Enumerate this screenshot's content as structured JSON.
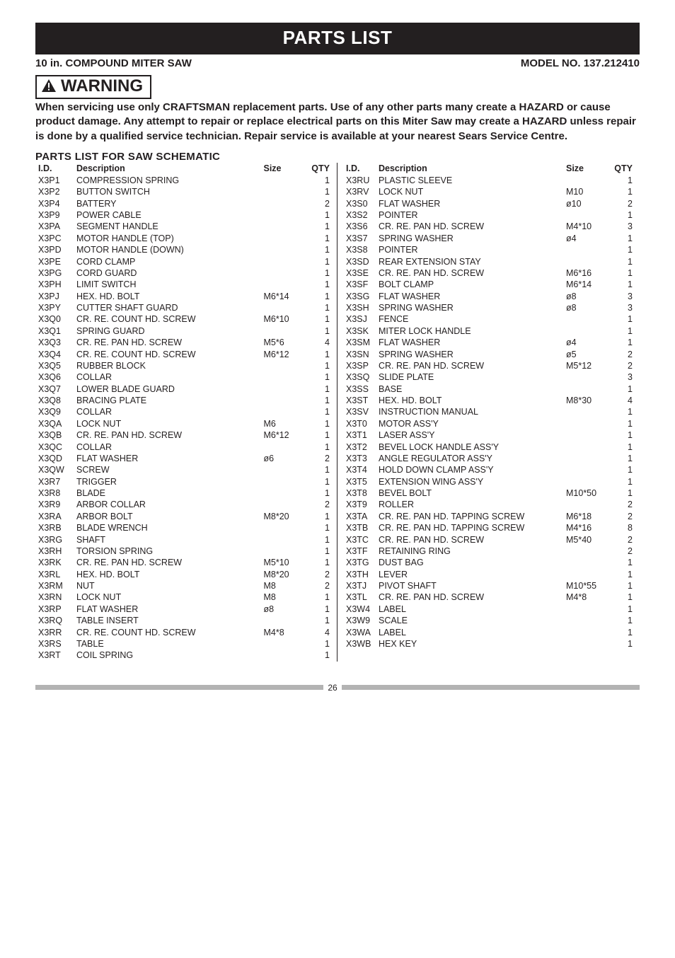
{
  "title": "PARTS LIST",
  "subtitle_left": "10 in. COMPOUND MITER SAW",
  "subtitle_right": "MODEL NO. 137.212410",
  "warning_label": "WARNING",
  "warning_text": "When servicing use only CRAFTSMAN replacement parts. Use of any other parts many create a HAZARD or cause product damage. Any attempt to repair or replace electrical parts on this Miter Saw may create a HAZARD unless repair is done by a qualified service technician. Repair service is available at your nearest Sears Service Centre.",
  "section_title": "PARTS LIST FOR SAW SCHEMATIC",
  "headers": {
    "id": "I.D.",
    "desc": "Description",
    "size": "Size",
    "qty": "QTY"
  },
  "left": [
    {
      "id": "X3P1",
      "desc": "COMPRESSION SPRING",
      "size": "",
      "qty": "1"
    },
    {
      "id": "X3P2",
      "desc": "BUTTON SWITCH",
      "size": "",
      "qty": "1"
    },
    {
      "id": "X3P4",
      "desc": "BATTERY",
      "size": "",
      "qty": "2"
    },
    {
      "id": "X3P9",
      "desc": "POWER CABLE",
      "size": "",
      "qty": "1"
    },
    {
      "id": "X3PA",
      "desc": "SEGMENT HANDLE",
      "size": "",
      "qty": "1"
    },
    {
      "id": "X3PC",
      "desc": "MOTOR HANDLE (TOP)",
      "size": "",
      "qty": "1"
    },
    {
      "id": "X3PD",
      "desc": "MOTOR HANDLE (DOWN)",
      "size": "",
      "qty": "1"
    },
    {
      "id": "X3PE",
      "desc": "CORD CLAMP",
      "size": "",
      "qty": "1"
    },
    {
      "id": "X3PG",
      "desc": "CORD GUARD",
      "size": "",
      "qty": "1"
    },
    {
      "id": "X3PH",
      "desc": "LIMIT SWITCH",
      "size": "",
      "qty": "1"
    },
    {
      "id": "X3PJ",
      "desc": "HEX. HD. BOLT",
      "size": "M6*14",
      "qty": "1"
    },
    {
      "id": "X3PY",
      "desc": "CUTTER SHAFT GUARD",
      "size": "",
      "qty": "1"
    },
    {
      "id": "X3Q0",
      "desc": "CR. RE. COUNT HD. SCREW",
      "size": "M6*10",
      "qty": "1"
    },
    {
      "id": "X3Q1",
      "desc": "SPRING GUARD",
      "size": "",
      "qty": "1"
    },
    {
      "id": "X3Q3",
      "desc": "CR. RE. PAN HD. SCREW",
      "size": "M5*6",
      "qty": "4"
    },
    {
      "id": "X3Q4",
      "desc": "CR. RE. COUNT HD. SCREW",
      "size": "M6*12",
      "qty": "1"
    },
    {
      "id": "X3Q5",
      "desc": "RUBBER BLOCK",
      "size": "",
      "qty": "1"
    },
    {
      "id": "X3Q6",
      "desc": "COLLAR",
      "size": "",
      "qty": "1"
    },
    {
      "id": "X3Q7",
      "desc": "LOWER BLADE GUARD",
      "size": "",
      "qty": "1"
    },
    {
      "id": "X3Q8",
      "desc": "BRACING PLATE",
      "size": "",
      "qty": "1"
    },
    {
      "id": "X3Q9",
      "desc": "COLLAR",
      "size": "",
      "qty": "1"
    },
    {
      "id": "X3QA",
      "desc": "LOCK NUT",
      "size": "M6",
      "qty": "1"
    },
    {
      "id": "X3QB",
      "desc": "CR. RE. PAN HD. SCREW",
      "size": "M6*12",
      "qty": "1"
    },
    {
      "id": "X3QC",
      "desc": "COLLAR",
      "size": "",
      "qty": "1"
    },
    {
      "id": "X3QD",
      "desc": "FLAT WASHER",
      "size": "ø6",
      "qty": "2"
    },
    {
      "id": "X3QW",
      "desc": "SCREW",
      "size": "",
      "qty": "1"
    },
    {
      "id": "X3R7",
      "desc": "TRIGGER",
      "size": "",
      "qty": "1"
    },
    {
      "id": "X3R8",
      "desc": "BLADE",
      "size": "",
      "qty": "1"
    },
    {
      "id": "X3R9",
      "desc": "ARBOR COLLAR",
      "size": "",
      "qty": "2"
    },
    {
      "id": "X3RA",
      "desc": "ARBOR BOLT",
      "size": "M8*20",
      "qty": "1"
    },
    {
      "id": "X3RB",
      "desc": "BLADE WRENCH",
      "size": "",
      "qty": "1"
    },
    {
      "id": "X3RG",
      "desc": "SHAFT",
      "size": "",
      "qty": "1"
    },
    {
      "id": "X3RH",
      "desc": "TORSION SPRING",
      "size": "",
      "qty": "1"
    },
    {
      "id": "X3RK",
      "desc": "CR. RE. PAN HD. SCREW",
      "size": "M5*10",
      "qty": "1"
    },
    {
      "id": "X3RL",
      "desc": "HEX. HD. BOLT",
      "size": "M8*20",
      "qty": "2"
    },
    {
      "id": "X3RM",
      "desc": "NUT",
      "size": "M8",
      "qty": "2"
    },
    {
      "id": "X3RN",
      "desc": "LOCK NUT",
      "size": "M8",
      "qty": "1"
    },
    {
      "id": "X3RP",
      "desc": "FLAT WASHER",
      "size": "ø8",
      "qty": "1"
    },
    {
      "id": "X3RQ",
      "desc": "TABLE INSERT",
      "size": "",
      "qty": "1"
    },
    {
      "id": "X3RR",
      "desc": "CR. RE. COUNT HD. SCREW",
      "size": "M4*8",
      "qty": "4"
    },
    {
      "id": "X3RS",
      "desc": "TABLE",
      "size": "",
      "qty": "1"
    },
    {
      "id": "X3RT",
      "desc": "COIL SPRING",
      "size": "",
      "qty": "1"
    }
  ],
  "right": [
    {
      "id": "X3RU",
      "desc": "PLASTIC SLEEVE",
      "size": "",
      "qty": "1"
    },
    {
      "id": "X3RV",
      "desc": "LOCK NUT",
      "size": "M10",
      "qty": "1"
    },
    {
      "id": "X3S0",
      "desc": "FLAT WASHER",
      "size": "ø10",
      "qty": "2"
    },
    {
      "id": "X3S2",
      "desc": "POINTER",
      "size": "",
      "qty": "1"
    },
    {
      "id": "X3S6",
      "desc": "CR. RE. PAN HD. SCREW",
      "size": "M4*10",
      "qty": "3"
    },
    {
      "id": "X3S7",
      "desc": "SPRING WASHER",
      "size": "ø4",
      "qty": "1"
    },
    {
      "id": "X3S8",
      "desc": "POINTER",
      "size": "",
      "qty": "1"
    },
    {
      "id": "X3SD",
      "desc": "REAR EXTENSION STAY",
      "size": "",
      "qty": "1"
    },
    {
      "id": "X3SE",
      "desc": "CR. RE. PAN HD. SCREW",
      "size": "M6*16",
      "qty": "1"
    },
    {
      "id": "X3SF",
      "desc": "BOLT CLAMP",
      "size": "M6*14",
      "qty": "1"
    },
    {
      "id": "X3SG",
      "desc": "FLAT WASHER",
      "size": "ø8",
      "qty": "3"
    },
    {
      "id": "X3SH",
      "desc": "SPRING WASHER",
      "size": "ø8",
      "qty": "3"
    },
    {
      "id": "X3SJ",
      "desc": "FENCE",
      "size": "",
      "qty": "1"
    },
    {
      "id": "X3SK",
      "desc": "MITER LOCK HANDLE",
      "size": "",
      "qty": "1"
    },
    {
      "id": "X3SM",
      "desc": "FLAT WASHER",
      "size": "ø4",
      "qty": "1"
    },
    {
      "id": "X3SN",
      "desc": "SPRING WASHER",
      "size": "ø5",
      "qty": "2"
    },
    {
      "id": "X3SP",
      "desc": "CR. RE. PAN HD. SCREW",
      "size": "M5*12",
      "qty": "2"
    },
    {
      "id": "X3SQ",
      "desc": "SLIDE PLATE",
      "size": "",
      "qty": "3"
    },
    {
      "id": "X3SS",
      "desc": "BASE",
      "size": "",
      "qty": "1"
    },
    {
      "id": "X3ST",
      "desc": "HEX. HD. BOLT",
      "size": "M8*30",
      "qty": "4"
    },
    {
      "id": "X3SV",
      "desc": "INSTRUCTION MANUAL",
      "size": "",
      "qty": "1"
    },
    {
      "id": "X3T0",
      "desc": "MOTOR ASS'Y",
      "size": "",
      "qty": "1"
    },
    {
      "id": "X3T1",
      "desc": "LASER ASS'Y",
      "size": "",
      "qty": "1"
    },
    {
      "id": "X3T2",
      "desc": "BEVEL LOCK HANDLE ASS'Y",
      "size": "",
      "qty": "1"
    },
    {
      "id": "X3T3",
      "desc": "ANGLE REGULATOR ASS'Y",
      "size": "",
      "qty": "1"
    },
    {
      "id": "X3T4",
      "desc": "HOLD DOWN CLAMP ASS'Y",
      "size": "",
      "qty": "1"
    },
    {
      "id": "X3T5",
      "desc": "EXTENSION WING ASS'Y",
      "size": "",
      "qty": "1"
    },
    {
      "id": "X3T8",
      "desc": "BEVEL BOLT",
      "size": "M10*50",
      "qty": "1"
    },
    {
      "id": "X3T9",
      "desc": "ROLLER",
      "size": "",
      "qty": "2"
    },
    {
      "id": "X3TA",
      "desc": "CR. RE. PAN HD. TAPPING SCREW",
      "size": "M6*18",
      "qty": "2"
    },
    {
      "id": "X3TB",
      "desc": "CR. RE. PAN HD. TAPPING SCREW",
      "size": "M4*16",
      "qty": "8"
    },
    {
      "id": "X3TC",
      "desc": "CR. RE. PAN HD. SCREW",
      "size": "M5*40",
      "qty": "2"
    },
    {
      "id": "X3TF",
      "desc": "RETAINING RING",
      "size": "",
      "qty": "2"
    },
    {
      "id": "X3TG",
      "desc": "DUST BAG",
      "size": "",
      "qty": "1"
    },
    {
      "id": "X3TH",
      "desc": "LEVER",
      "size": "",
      "qty": "1"
    },
    {
      "id": "X3TJ",
      "desc": "PIVOT SHAFT",
      "size": "M10*55",
      "qty": "1"
    },
    {
      "id": "X3TL",
      "desc": "CR. RE. PAN HD. SCREW",
      "size": "M4*8",
      "qty": "1"
    },
    {
      "id": "X3W4",
      "desc": "LABEL",
      "size": "",
      "qty": "1"
    },
    {
      "id": "X3W9",
      "desc": "SCALE",
      "size": "",
      "qty": "1"
    },
    {
      "id": "X3WA",
      "desc": "LABEL",
      "size": "",
      "qty": "1"
    },
    {
      "id": "X3WB",
      "desc": "HEX KEY",
      "size": "",
      "qty": "1"
    }
  ],
  "page_number": "26"
}
